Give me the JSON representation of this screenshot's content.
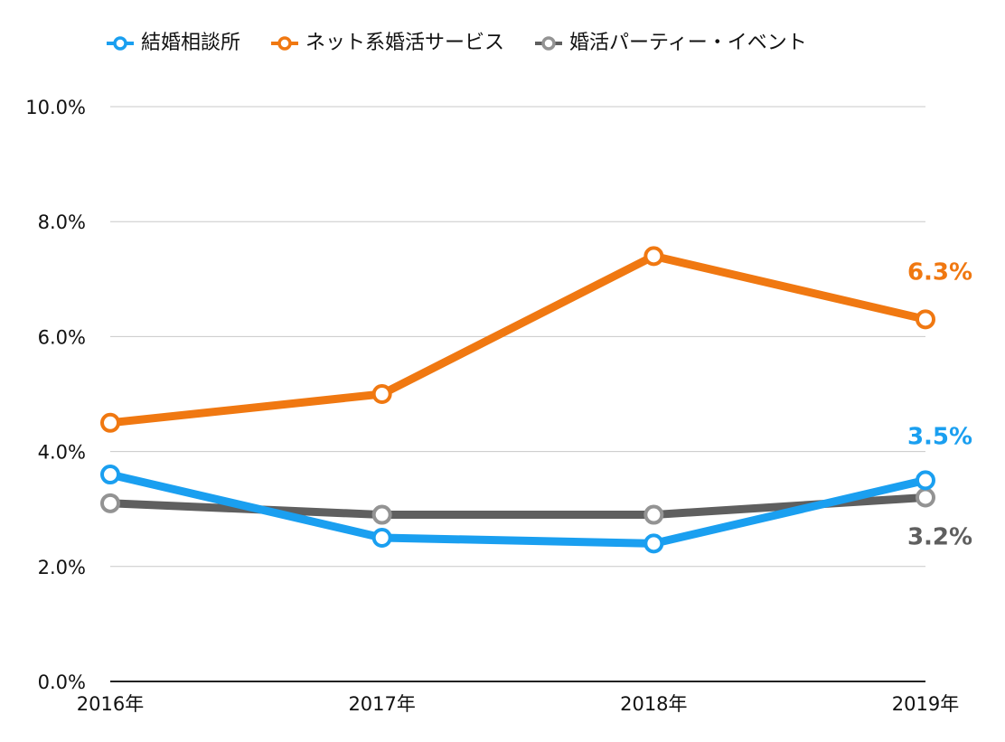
{
  "chart_data": {
    "type": "line",
    "categories": [
      "2016年",
      "2017年",
      "2018年",
      "2019年"
    ],
    "ylim": [
      0,
      10
    ],
    "yticks": [
      "0.0%",
      "2.0%",
      "4.0%",
      "6.0%",
      "8.0%",
      "10.0%"
    ],
    "ytick_values": [
      0,
      2,
      4,
      6,
      8,
      10
    ],
    "grid": true,
    "legend_position": "top-left",
    "series": [
      {
        "name": "結婚相談所",
        "color": "#1a9ff0",
        "values": [
          3.6,
          2.5,
          2.4,
          3.5
        ],
        "end_label": "3.5%"
      },
      {
        "name": "ネット系婚活サービス",
        "color": "#f07811",
        "values": [
          4.5,
          5.0,
          7.4,
          6.3
        ],
        "end_label": "6.3%"
      },
      {
        "name": "婚活パーティー・イベント",
        "color": "#5f5f5f",
        "marker_color": "#939393",
        "values": [
          3.1,
          2.9,
          2.9,
          3.2
        ],
        "end_label": "3.2%"
      }
    ]
  }
}
